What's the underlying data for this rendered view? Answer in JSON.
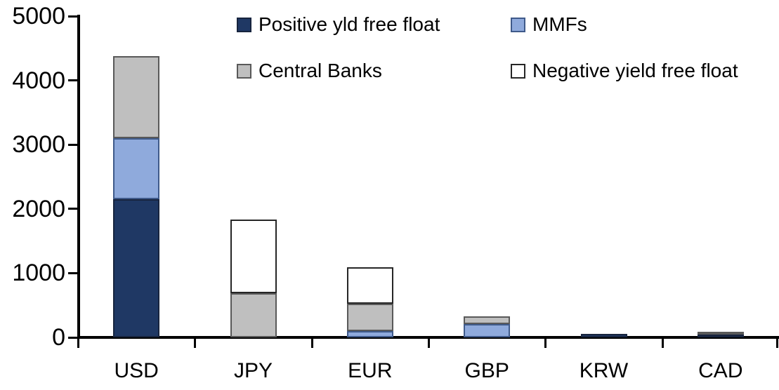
{
  "chart_data": {
    "type": "bar",
    "stacked": true,
    "title": "",
    "xlabel": "",
    "ylabel": "",
    "categories": [
      "USD",
      "JPY",
      "EUR",
      "GBP",
      "KRW",
      "CAD"
    ],
    "series": [
      {
        "name": "Positive yld free float",
        "color": "#1F3864",
        "border": "#17243E",
        "values": [
          2150,
          0,
          0,
          0,
          50,
          30
        ]
      },
      {
        "name": "MMFs",
        "color": "#8FAADC",
        "border": "#3F5A8A",
        "values": [
          950,
          0,
          100,
          210,
          0,
          0
        ]
      },
      {
        "name": "Central Banks",
        "color": "#BFBFBF",
        "border": "#595959",
        "values": [
          1280,
          690,
          430,
          120,
          0,
          30
        ]
      },
      {
        "name": "Negative yield free float",
        "color": "#FFFFFF",
        "border": "#262626",
        "values": [
          0,
          1150,
          570,
          0,
          0,
          0
        ]
      }
    ],
    "totals": [
      4380,
      1840,
      1100,
      330,
      50,
      60
    ],
    "ylim": [
      0,
      5000
    ],
    "ytick_interval": 1000,
    "yticks": [
      "0",
      "1000",
      "2000",
      "3000",
      "4000",
      "5000"
    ],
    "grid": false,
    "legend_position": "top",
    "axis_color": "#000000"
  }
}
